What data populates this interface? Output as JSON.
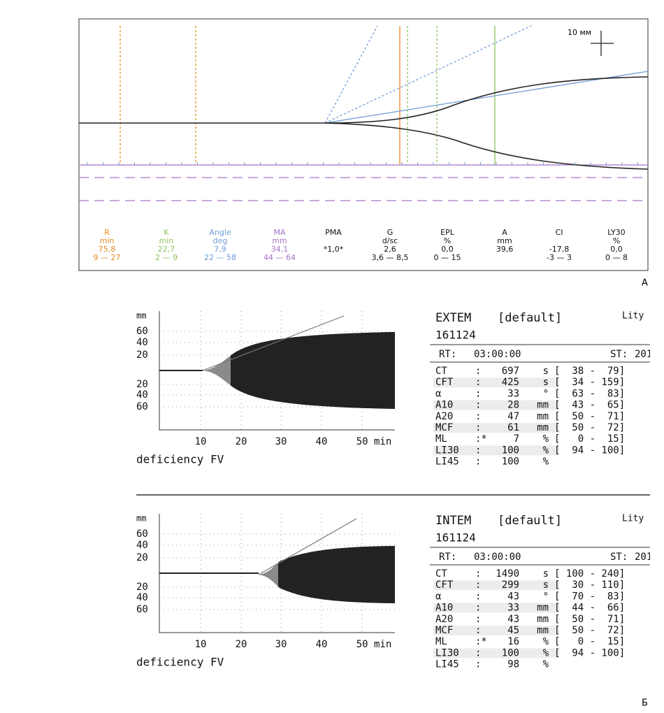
{
  "panel_a": {
    "scale_label": "10 мм",
    "panel_label": "A",
    "columns": [
      {
        "name": "R",
        "unit": "min",
        "value": "75,8",
        "range": "9 — 27",
        "color": "#e8891f"
      },
      {
        "name": "K",
        "unit": "min",
        "value": "22,7",
        "range": "2 — 9",
        "color": "#8dc45b"
      },
      {
        "name": "Angle",
        "unit": "deg",
        "value": "7,9",
        "range": "22 — 58",
        "color": "#6e9bd6"
      },
      {
        "name": "MA",
        "unit": "mm",
        "value": "34,1",
        "range": "44 — 64",
        "color": "#a873c7"
      },
      {
        "name": "PMA",
        "value": "*1,0*",
        "color": "#111111"
      },
      {
        "name": "G",
        "unit": "d/sc",
        "value": "2,6",
        "range": "3,6 — 8,5",
        "color": "#111111"
      },
      {
        "name": "EPL",
        "unit": "%",
        "value": "0,0",
        "range": "0 — 15",
        "color": "#111111"
      },
      {
        "name": "A",
        "unit": "mm",
        "value": "39,6",
        "color": "#111111"
      },
      {
        "name": "CI",
        "value": "-17,8",
        "range": "-3 — 3",
        "color": "#111111"
      },
      {
        "name": "LY30",
        "unit": "%",
        "value": "0,0",
        "range": "0 — 8",
        "color": "#111111"
      }
    ]
  },
  "panel_b": {
    "panel_label": "Б",
    "tests": [
      {
        "name": "EXTEM",
        "profile": "[default]",
        "operator": "Lity",
        "id": "161124",
        "rt_label": "RT:",
        "rt_value": "03:00:00",
        "st_label": "ST:",
        "st_value": "201",
        "chart": {
          "y_label": "mm",
          "y_ticks": [
            "60",
            "40",
            "20",
            "20",
            "40",
            "60"
          ],
          "x_ticks": [
            "10",
            "20",
            "30",
            "40",
            "50 min"
          ],
          "caption": "deficiency FV"
        },
        "rows": [
          {
            "name": "CT",
            "sep": ":",
            "value": "697",
            "unit": "s",
            "range": "[  38 -  79]"
          },
          {
            "name": "CFT",
            "sep": ":",
            "value": "425",
            "unit": "s",
            "range": "[  34 - 159]"
          },
          {
            "name": "α",
            "sep": ":",
            "value": "33",
            "unit": "°",
            "range": "[  63 -  83]"
          },
          {
            "name": "A10",
            "sep": ":",
            "value": "28",
            "unit": "mm",
            "range": "[  43 -  65]"
          },
          {
            "name": "A20",
            "sep": ":",
            "value": "47",
            "unit": "mm",
            "range": "[  50 -  71]"
          },
          {
            "name": "MCF",
            "sep": ":",
            "value": "61",
            "unit": "mm",
            "range": "[  50 -  72]"
          },
          {
            "name": "ML",
            "sep": ":*",
            "value": "7",
            "unit": "%",
            "range": "[   0 -  15]"
          },
          {
            "name": "LI30",
            "sep": ":",
            "value": "100",
            "unit": "%",
            "range": "[  94 - 100]"
          },
          {
            "name": "LI45",
            "sep": ":",
            "value": "100",
            "unit": "%"
          }
        ]
      },
      {
        "name": "INTEM",
        "profile": "[default]",
        "operator": "Lity",
        "id": "161124",
        "rt_label": "RT:",
        "rt_value": "03:00:00",
        "st_label": "ST:",
        "st_value": "201",
        "chart": {
          "y_label": "mm",
          "y_ticks": [
            "60",
            "40",
            "20",
            "20",
            "40",
            "60"
          ],
          "x_ticks": [
            "10",
            "20",
            "30",
            "40",
            "50 min"
          ],
          "caption": "deficiency FV"
        },
        "rows": [
          {
            "name": "CT",
            "sep": ":",
            "value": "1490",
            "unit": "s",
            "range": "[ 100 - 240]"
          },
          {
            "name": "CFT",
            "sep": ":",
            "value": "299",
            "unit": "s",
            "range": "[  30 - 110]"
          },
          {
            "name": "α",
            "sep": ":",
            "value": "43",
            "unit": "°",
            "range": "[  70 -  83]"
          },
          {
            "name": "A10",
            "sep": ":",
            "value": "33",
            "unit": "mm",
            "range": "[  44 -  66]"
          },
          {
            "name": "A20",
            "sep": ":",
            "value": "43",
            "unit": "mm",
            "range": "[  50 -  71]"
          },
          {
            "name": "MCF",
            "sep": ":",
            "value": "45",
            "unit": "mm",
            "range": "[  50 -  72]"
          },
          {
            "name": "ML",
            "sep": ":*",
            "value": "16",
            "unit": "%",
            "range": "[   0 -  15]"
          },
          {
            "name": "LI30",
            "sep": ":",
            "value": "100",
            "unit": "%",
            "range": "[  94 - 100]"
          },
          {
            "name": "LI45",
            "sep": ":",
            "value": "98",
            "unit": "%"
          }
        ]
      }
    ]
  }
}
